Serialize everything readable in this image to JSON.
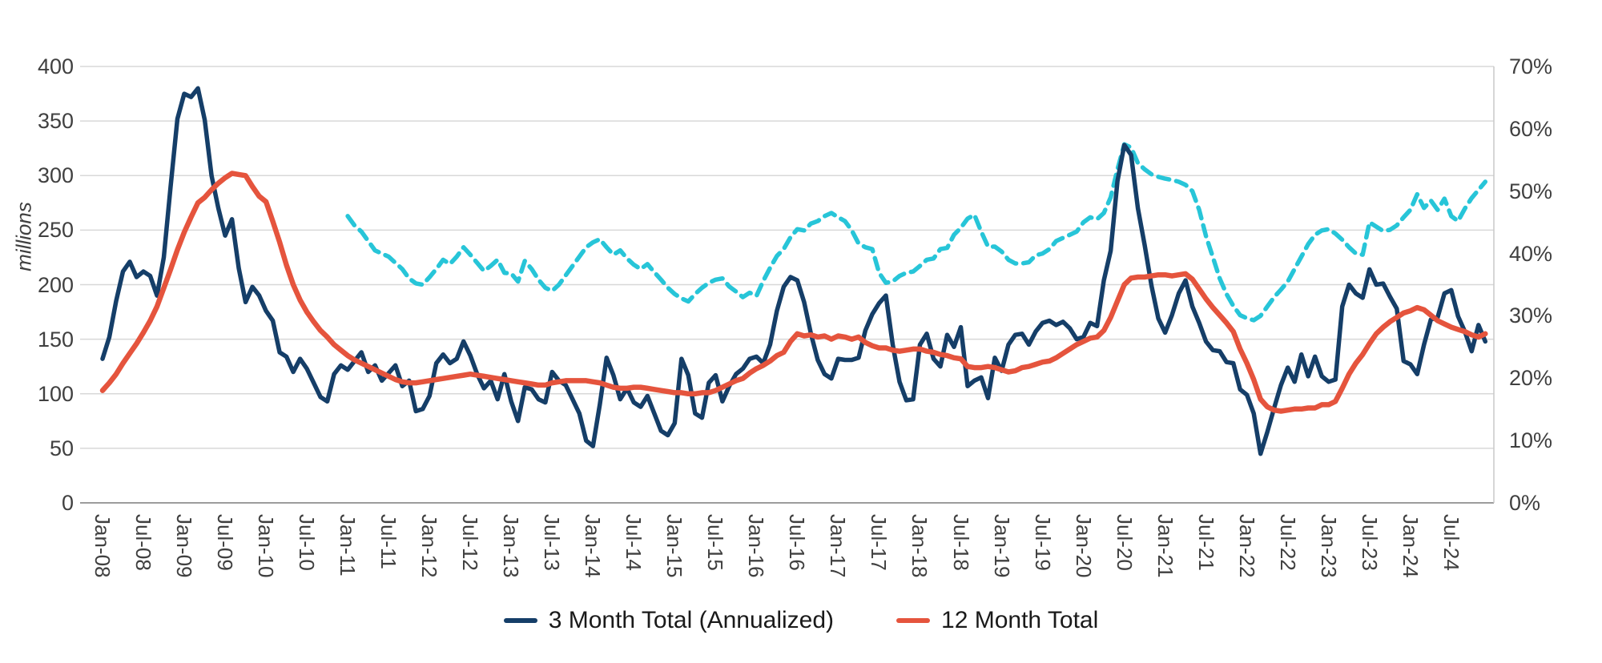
{
  "axes": {
    "left_unit_label": "millions",
    "left_ticks": [
      "0",
      "50",
      "100",
      "150",
      "200",
      "250",
      "300",
      "350",
      "400"
    ],
    "left_range": [
      0,
      400
    ],
    "right_ticks": [
      "0%",
      "10%",
      "20%",
      "30%",
      "40%",
      "50%",
      "60%",
      "70%"
    ],
    "right_range": [
      0,
      70
    ],
    "x_tick_labels": [
      "Jan-08",
      "Jul-08",
      "Jan-09",
      "Jul-09",
      "Jan-10",
      "Jul-10",
      "Jan-11",
      "Jul-11",
      "Jan-12",
      "Jul-12",
      "Jan-13",
      "Jul-13",
      "Jan-14",
      "Jul-14",
      "Jan-15",
      "Jul-15",
      "Jan-16",
      "Jul-16",
      "Jan-17",
      "Jul-17",
      "Jan-18",
      "Jul-18",
      "Jan-19",
      "Jul-19",
      "Jan-20",
      "Jul-20",
      "Jan-21",
      "Jul-21",
      "Jan-22",
      "Jul-22",
      "Jan-23",
      "Jul-23",
      "Jan-24",
      "Jul-24"
    ]
  },
  "legend": {
    "items": [
      {
        "label": "3 Month Total (Annualized)",
        "color_key": "navy",
        "dashed": false
      },
      {
        "label": "12 Month Total",
        "color_key": "red",
        "dashed": false
      }
    ]
  },
  "colors": {
    "navy": "#153E68",
    "red": "#E5543D",
    "cyan": "#27C5D8",
    "gridline": "#D8D8D8",
    "axis_line": "#9C9C9C",
    "right_spine": "#C9C9C9",
    "tick_text": "#404040"
  },
  "chart_data": {
    "type": "line",
    "title": "",
    "xlabel": "",
    "ylabel_left": "millions",
    "ylabel_right": "",
    "grid": "horizontal",
    "legend_position": "bottom-center",
    "monthly_start": "Jan-08",
    "monthly_end": "Dec-24",
    "x_labels_shown_every_months": 6,
    "ylim_left": [
      0,
      400
    ],
    "ylim_right_pct": [
      0,
      70
    ],
    "series": [
      {
        "name": "unlabeled-dashed-percent-series",
        "axis": "right",
        "dashed": true,
        "color_key": "cyan",
        "values": [
          null,
          null,
          null,
          null,
          null,
          null,
          null,
          null,
          null,
          null,
          null,
          null,
          null,
          null,
          null,
          null,
          null,
          null,
          null,
          null,
          null,
          null,
          null,
          null,
          null,
          null,
          null,
          null,
          null,
          null,
          null,
          null,
          null,
          null,
          null,
          null,
          46,
          44.5,
          43.5,
          42,
          40.5,
          40,
          39.5,
          38.5,
          37.5,
          36,
          35.2,
          35,
          36.2,
          37.5,
          39,
          38.3,
          39.5,
          41,
          39.8,
          38.5,
          37.2,
          38,
          39,
          36.9,
          36.8,
          35.5,
          38.8,
          37.5,
          35.8,
          34.5,
          34,
          35,
          36.5,
          38,
          39.5,
          41,
          41.8,
          42.3,
          41,
          39.8,
          40.5,
          39.2,
          38.2,
          37.5,
          38.3,
          37,
          35.8,
          34.5,
          33.5,
          32.8,
          32.3,
          33.5,
          34.5,
          35.3,
          35.8,
          36,
          34.7,
          33.9,
          33,
          33.7,
          33.2,
          35.6,
          37.7,
          39.6,
          40.7,
          42.6,
          43.9,
          43.7,
          44.8,
          45.2,
          46,
          46.5,
          45.8,
          45.2,
          43.7,
          41.6,
          41,
          40.7,
          36.9,
          35.3,
          35.5,
          36.4,
          36.9,
          37.1,
          38,
          39,
          39.2,
          40.7,
          40.9,
          43,
          44.1,
          45.6,
          46.2,
          43.5,
          41.1,
          41.1,
          40.3,
          39,
          38.4,
          38.4,
          38.6,
          39.7,
          40,
          40.7,
          42,
          42.5,
          43,
          43.5,
          45,
          45.8,
          45.5,
          46.5,
          49,
          53.5,
          57.5,
          57,
          54.5,
          53.5,
          52.7,
          52.3,
          52,
          51.8,
          51.5,
          51,
          50,
          47,
          42.8,
          39.4,
          36,
          33.5,
          31.6,
          30.1,
          29.6,
          29.3,
          30,
          31.5,
          33,
          34.2,
          35.5,
          37.5,
          39.5,
          41.5,
          43,
          43.7,
          43.9,
          43.2,
          42.2,
          41,
          40,
          39.8,
          45,
          44.3,
          43.6,
          43.8,
          44.5,
          45.8,
          47,
          49.5,
          47.3,
          48.5,
          47,
          48.8,
          46,
          45.2,
          47.2,
          48.9,
          50.2,
          51.5
        ]
      },
      {
        "name": "3 Month Total (Annualized)",
        "axis": "left",
        "dashed": false,
        "color_key": "navy",
        "values": [
          132,
          152,
          185,
          212,
          221,
          207,
          212,
          208,
          190,
          225,
          290,
          352,
          375,
          372,
          380,
          351,
          300,
          270,
          245,
          260,
          215,
          184,
          198,
          190,
          176,
          167,
          138,
          134,
          120,
          132,
          123,
          110,
          97,
          93,
          118,
          126,
          122,
          130,
          138,
          120,
          126,
          112,
          119,
          126,
          107,
          112,
          84,
          86,
          98,
          128,
          136,
          128,
          132,
          148,
          135,
          118,
          105,
          112,
          95,
          118,
          93,
          75,
          106,
          104,
          95,
          92,
          120,
          112,
          108,
          95,
          82,
          57,
          52,
          90,
          133,
          117,
          95,
          105,
          92,
          88,
          98,
          82,
          66,
          62,
          73,
          132,
          117,
          82,
          78,
          110,
          117,
          93,
          107,
          118,
          123,
          132,
          134,
          128,
          145,
          176,
          198,
          207,
          204,
          184,
          155,
          131,
          118,
          114,
          132,
          131,
          131,
          133,
          158,
          173,
          183,
          190,
          145,
          111,
          94,
          95,
          145,
          155,
          132,
          125,
          154,
          143,
          161,
          107,
          112,
          115,
          96,
          133,
          121,
          145,
          154,
          155,
          145,
          157,
          165,
          167,
          163,
          166,
          160,
          150,
          152,
          165,
          162,
          204,
          231,
          295,
          328,
          319,
          270,
          236,
          199,
          169,
          156,
          172,
          192,
          204,
          180,
          165,
          148,
          140,
          139,
          129,
          128,
          104,
          99,
          82,
          45,
          65,
          87,
          108,
          124,
          111,
          136,
          116,
          134,
          116,
          111,
          113,
          180,
          200,
          192,
          188,
          214,
          200,
          201,
          189,
          178,
          130,
          127,
          118,
          145,
          168,
          170,
          192,
          195,
          171,
          157,
          139,
          163,
          148
        ]
      },
      {
        "name": "12 Month Total",
        "axis": "left",
        "dashed": false,
        "color_key": "red",
        "values": [
          103,
          110,
          118,
          128,
          137,
          146,
          156,
          167,
          180,
          197,
          214,
          232,
          248,
          262,
          275,
          280,
          287,
          293,
          298,
          302,
          301,
          300,
          290,
          281,
          276,
          258,
          239,
          218,
          200,
          186,
          175,
          166,
          158,
          152,
          145,
          140,
          135,
          131,
          128,
          125,
          122,
          119,
          116,
          113,
          111,
          110,
          110,
          111,
          112,
          113,
          114,
          115,
          116,
          117,
          118,
          117,
          116,
          115,
          114,
          113,
          112,
          111,
          110,
          109,
          108,
          108,
          110,
          111,
          112,
          112,
          112,
          112,
          111,
          110,
          108,
          106,
          105,
          105,
          106,
          106,
          105,
          104,
          103,
          102,
          101,
          101,
          100,
          100,
          101,
          101,
          103,
          106,
          109,
          112,
          114,
          119,
          123,
          126,
          130,
          135,
          138,
          148,
          155,
          153,
          154,
          152,
          153,
          150,
          153,
          152,
          150,
          152,
          147,
          144,
          142,
          142,
          140,
          139,
          140,
          141,
          141,
          139,
          138,
          136,
          135,
          133,
          132,
          125,
          124,
          124,
          125,
          124,
          122,
          120,
          121,
          124,
          125,
          127,
          129,
          130,
          133,
          137,
          141,
          145,
          148,
          151,
          152,
          158,
          170,
          185,
          200,
          206,
          207,
          207,
          208,
          209,
          209,
          208,
          209,
          210,
          205,
          196,
          187,
          179,
          172,
          165,
          157,
          141,
          128,
          113,
          95,
          88,
          85,
          84,
          85,
          86,
          86,
          87,
          87,
          90,
          90,
          93,
          105,
          118,
          128,
          136,
          146,
          155,
          161,
          166,
          170,
          174,
          176,
          179,
          177,
          172,
          167,
          164,
          161,
          159,
          157,
          154,
          152,
          155
        ]
      }
    ]
  }
}
